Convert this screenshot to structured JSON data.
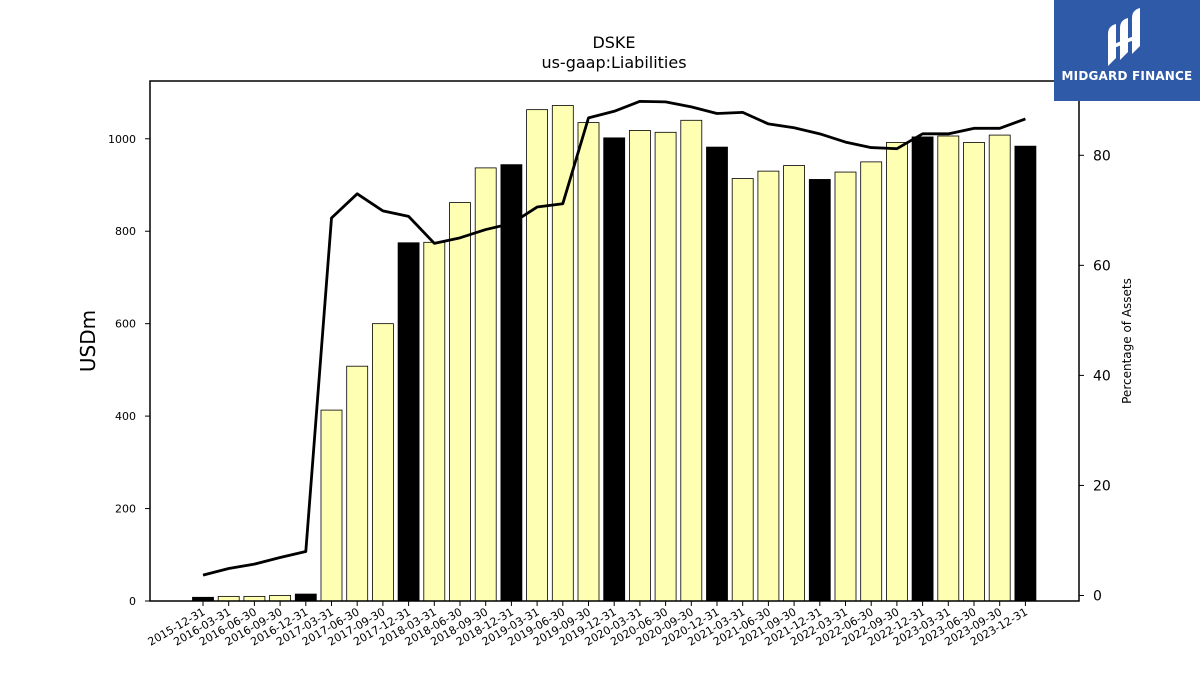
{
  "chart_data": {
    "type": "bar",
    "title": "DSKE",
    "subtitle": "us-gaap:Liabilities",
    "ylabel": "USDm",
    "y2label": "Percentage of Assets",
    "ylim": [
      0,
      1125
    ],
    "y2lim": [
      -1,
      93.5
    ],
    "yticks": [
      0,
      200,
      400,
      600,
      800,
      1000
    ],
    "y2ticks": [
      0,
      20,
      40,
      60,
      80
    ],
    "categories": [
      "2015-12-31",
      "2016-03-31",
      "2016-06-30",
      "2016-09-30",
      "2016-12-31",
      "2017-03-31",
      "2017-06-30",
      "2017-09-30",
      "2017-12-31",
      "2018-03-31",
      "2018-06-30",
      "2018-09-30",
      "2018-12-31",
      "2019-03-31",
      "2019-06-30",
      "2019-09-30",
      "2019-12-31",
      "2020-03-31",
      "2020-06-30",
      "2020-09-30",
      "2020-12-31",
      "2021-03-31",
      "2021-06-30",
      "2021-09-30",
      "2021-12-31",
      "2022-03-31",
      "2022-06-30",
      "2022-09-30",
      "2022-12-31",
      "2023-03-31",
      "2023-06-30",
      "2023-09-30",
      "2023-12-31"
    ],
    "series": [
      {
        "kind": "bar",
        "values": [
          8,
          10,
          10,
          12,
          15,
          413,
          508,
          600,
          775,
          776,
          862,
          937,
          944,
          1063,
          1072,
          1035,
          1002,
          1018,
          1014,
          1040,
          982,
          914,
          930,
          942,
          912,
          928,
          950,
          992,
          1004,
          1006,
          992,
          1008,
          984
        ],
        "highlight": [
          true,
          false,
          false,
          false,
          true,
          false,
          false,
          false,
          true,
          false,
          false,
          false,
          true,
          false,
          false,
          false,
          true,
          false,
          false,
          false,
          true,
          false,
          false,
          false,
          true,
          false,
          false,
          false,
          true,
          false,
          false,
          false,
          true
        ]
      },
      {
        "kind": "line",
        "axis": "right",
        "values": [
          3.7,
          4.9,
          5.7,
          6.9,
          8.0,
          68.6,
          73.0,
          69.9,
          68.9,
          64.0,
          65.0,
          66.5,
          67.6,
          70.6,
          71.2,
          86.8,
          88.0,
          89.8,
          89.7,
          88.8,
          87.6,
          87.8,
          85.7,
          85.0,
          83.9,
          82.4,
          81.4,
          81.2,
          83.9,
          83.9,
          84.9,
          84.9,
          86.6
        ]
      }
    ],
    "colors": {
      "bar_fill": "#ffffb3",
      "bar_highlight": "#000000",
      "bar_edge": "#000000",
      "line": "#000000"
    }
  },
  "logo": {
    "text": "MIDGARD FINANCE",
    "color": "#2f5aa8"
  }
}
